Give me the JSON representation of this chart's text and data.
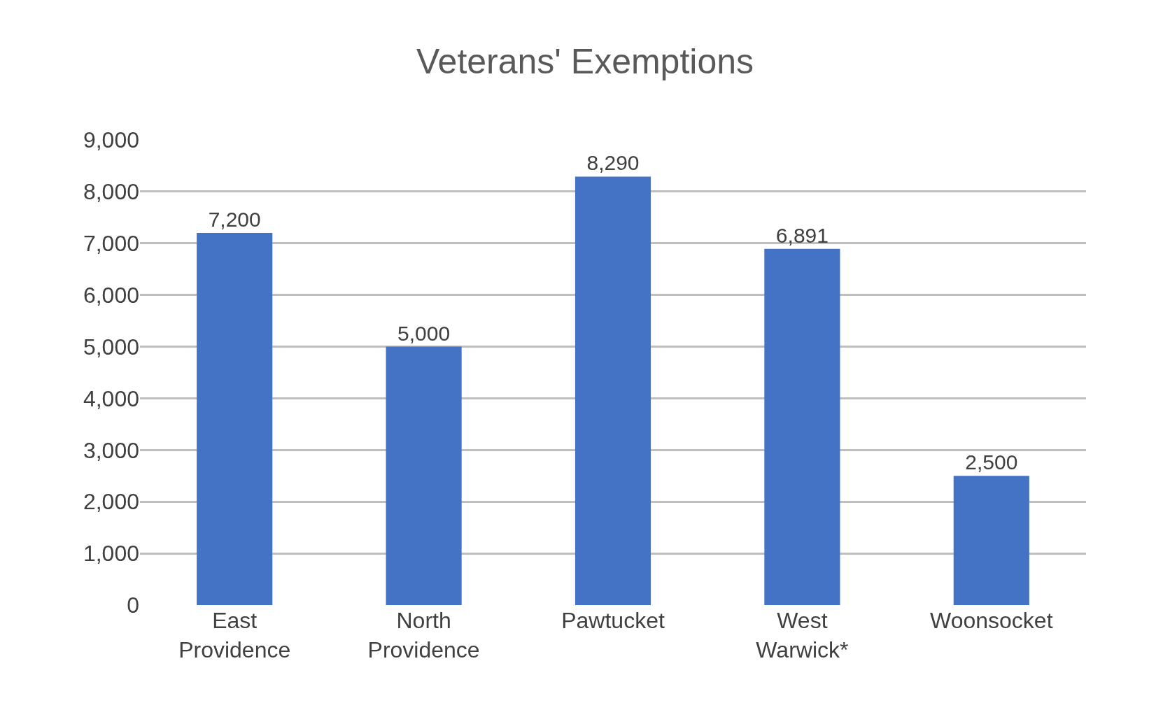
{
  "chart_data": {
    "type": "bar",
    "title": "Veterans' Exemptions",
    "categories": [
      "East Providence",
      "North Providence",
      "Pawtucket",
      "West Warwick*",
      "Woonsocket"
    ],
    "values": [
      7200,
      5000,
      8290,
      6891,
      2500
    ],
    "color": "#4472c4",
    "ylim": [
      0,
      9000
    ],
    "yticks": [
      {
        "value": 0,
        "label": "0"
      },
      {
        "value": 1000,
        "label": "1,000"
      },
      {
        "value": 2000,
        "label": "2,000"
      },
      {
        "value": 3000,
        "label": "3,000"
      },
      {
        "value": 4000,
        "label": "4,000"
      },
      {
        "value": 5000,
        "label": "5,000"
      },
      {
        "value": 6000,
        "label": "6,000"
      },
      {
        "value": 7000,
        "label": "7,000"
      },
      {
        "value": 8000,
        "label": "8,000"
      },
      {
        "value": 9000,
        "label": "9,000"
      }
    ],
    "value_labels": [
      "7,200",
      "5,000",
      "8,290",
      "6,891",
      "2,500"
    ],
    "grid": "y"
  }
}
